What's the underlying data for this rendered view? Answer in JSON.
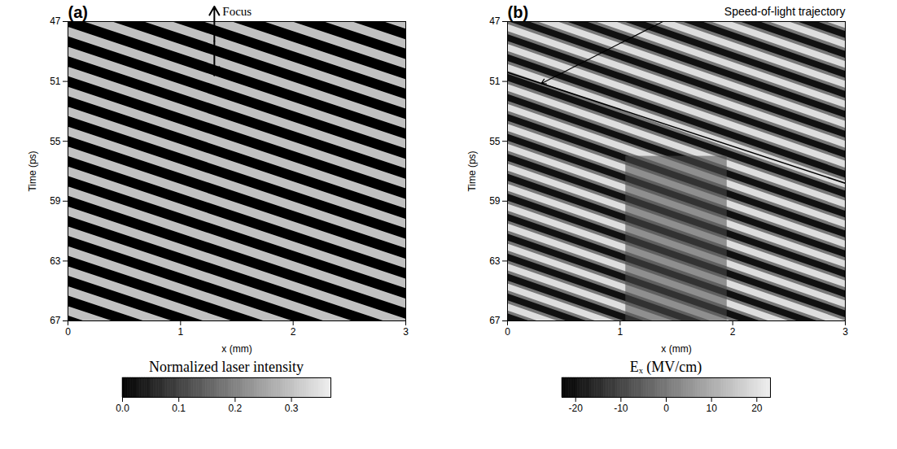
{
  "chart_data": [
    {
      "type": "heatmap",
      "panel": "(a)",
      "xlabel": "x (mm)",
      "ylabel": "Time (ps)",
      "xlim": [
        0,
        3
      ],
      "xticks": [
        0,
        1,
        2,
        3
      ],
      "ylim": [
        67,
        47
      ],
      "yticks": [
        47,
        51,
        55,
        59,
        63,
        67
      ],
      "background_value": 0,
      "crest_x": [
        0,
        3
      ],
      "crests": [
        {
          "value": 0.3,
          "y_start": [
            39.67,
            41.0,
            42.33,
            43.67,
            45.0,
            46.33,
            47.67,
            49.0,
            50.33,
            51.67,
            53.0,
            54.33,
            55.67,
            57.0,
            58.33,
            59.67,
            61.0,
            62.33,
            63.67,
            65.0,
            66.33
          ],
          "y_end": [
            47.17,
            48.5,
            49.83,
            51.17,
            52.5,
            53.83,
            55.17,
            56.5,
            57.83,
            59.17,
            60.5,
            61.83,
            63.17,
            64.5,
            65.83,
            67.17,
            68.5,
            69.83,
            71.17,
            72.5,
            73.83
          ]
        }
      ],
      "focus": {
        "text": "Focus",
        "x": 1.3,
        "y": [
          46.0,
          50.6
        ]
      },
      "colorbar": {
        "label": "Normalized laser intensity",
        "range": [
          0,
          0.37
        ],
        "ticks": [
          {
            "value": 0,
            "label": "0.0"
          },
          {
            "value": 0.1,
            "label": "0.1"
          },
          {
            "value": 0.2,
            "label": "0.2"
          },
          {
            "value": 0.3,
            "label": "0.3"
          }
        ]
      }
    },
    {
      "type": "heatmap",
      "panel": "(b)",
      "xlabel": "x (mm)",
      "ylabel": "Time (ps)",
      "xlim": [
        0,
        3
      ],
      "xticks": [
        0,
        1,
        2,
        3
      ],
      "ylim": [
        67,
        47
      ],
      "yticks": [
        47,
        51,
        55,
        59,
        63,
        67
      ],
      "background_value": 0,
      "crest_x": [
        0,
        3
      ],
      "crests": [
        {
          "value": 20,
          "y_start": [
            39.4,
            40.73,
            42.07,
            43.4,
            44.73,
            46.07,
            47.4,
            48.73,
            50.07,
            51.4,
            52.73,
            54.07,
            55.4,
            56.73,
            58.07,
            59.4,
            60.73,
            62.07,
            63.4,
            64.73,
            66.07
          ],
          "y_end": [
            47.2,
            48.53,
            49.87,
            51.2,
            52.53,
            53.87,
            55.2,
            56.53,
            57.87,
            59.2,
            60.53,
            61.87,
            63.2,
            64.53,
            65.87,
            67.2,
            68.53,
            69.87,
            71.2,
            72.53,
            73.87
          ]
        },
        {
          "value": -20,
          "y_start": [
            40.07,
            41.4,
            42.73,
            44.07,
            45.4,
            46.73,
            48.07,
            49.4,
            50.73,
            52.07,
            53.4,
            54.73,
            56.07,
            57.4,
            58.73,
            60.07,
            61.4,
            62.73,
            64.07,
            65.4,
            66.73
          ],
          "y_end": [
            47.87,
            49.2,
            50.53,
            51.87,
            53.2,
            54.53,
            55.87,
            57.2,
            58.53,
            59.87,
            61.2,
            62.53,
            63.87,
            65.2,
            66.53,
            67.87,
            69.2,
            70.53,
            71.87,
            73.2,
            74.53
          ]
        }
      ],
      "region": {
        "x": [
          1.05,
          1.95
        ],
        "y": [
          56.0,
          67.0
        ],
        "value": -8
      },
      "trajectory": {
        "text": "Speed-of-light trajectory",
        "x": [
          0,
          3
        ],
        "y": [
          50.4,
          57.8
        ]
      },
      "colorbar": {
        "label": "Eₓ (MV/cm)",
        "range": [
          -23,
          23
        ],
        "ticks": [
          -20,
          -10,
          0,
          10,
          20
        ]
      }
    }
  ]
}
